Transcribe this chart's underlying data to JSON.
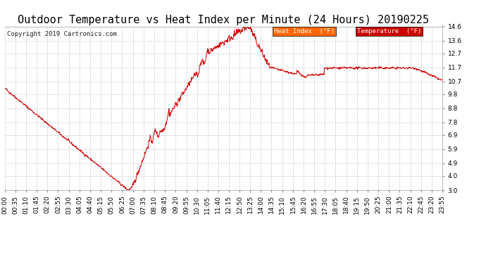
{
  "title": "Outdoor Temperature vs Heat Index per Minute (24 Hours) 20190225",
  "copyright": "Copyright 2019 Cartronics.com",
  "ylim": [
    3.0,
    14.6
  ],
  "yticks": [
    3.0,
    4.0,
    4.9,
    5.9,
    6.9,
    7.8,
    8.8,
    9.8,
    10.7,
    11.7,
    12.7,
    13.6,
    14.6
  ],
  "line_color": "#cc0000",
  "heat_index_legend_bg": "#ff6600",
  "temp_legend_bg": "#cc0000",
  "background_color": "#ffffff",
  "grid_color": "#bbbbbb",
  "title_fontsize": 11,
  "tick_fontsize": 6.5,
  "copyright_fontsize": 6.5,
  "legend_fontsize": 6.5,
  "xtick_labels": [
    "00:00",
    "00:35",
    "01:10",
    "01:45",
    "02:20",
    "02:55",
    "03:30",
    "04:05",
    "04:40",
    "05:15",
    "05:50",
    "06:25",
    "07:00",
    "07:35",
    "08:10",
    "08:45",
    "09:20",
    "09:55",
    "10:30",
    "11:05",
    "11:40",
    "12:15",
    "12:50",
    "13:25",
    "14:00",
    "14:35",
    "15:10",
    "15:45",
    "16:20",
    "16:55",
    "17:30",
    "18:05",
    "18:40",
    "19:15",
    "19:50",
    "20:25",
    "21:00",
    "21:35",
    "22:10",
    "22:45",
    "23:20",
    "23:55"
  ]
}
